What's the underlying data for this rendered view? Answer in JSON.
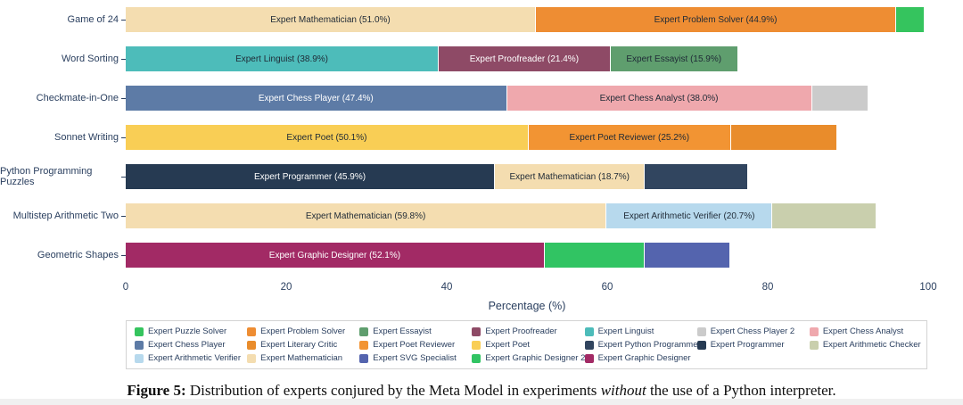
{
  "chart_data": {
    "type": "bar",
    "orientation": "horizontal",
    "stacked": true,
    "title": "",
    "xlabel": "Percentage (%)",
    "ylabel": "",
    "xlim": [
      0,
      100
    ],
    "xticks": [
      0,
      20,
      40,
      60,
      80,
      100
    ],
    "grid": false,
    "legend_position": "bottom",
    "categories": [
      "Game of 24",
      "Word Sorting",
      "Checkmate-in-One",
      "Sonnet Writing",
      "Python Programming Puzzles",
      "Multistep Arithmetic Two",
      "Geometric Shapes"
    ],
    "rows": [
      {
        "category": "Game of 24",
        "segments": [
          {
            "expert": "Expert Mathematician",
            "value": 51.0,
            "label": "Expert Mathematician (51.0%)",
            "text": "dark"
          },
          {
            "expert": "Expert Problem Solver",
            "value": 44.9,
            "label": "Expert Problem Solver (44.9%)",
            "text": "dark"
          },
          {
            "expert": "Expert Puzzle Solver",
            "value": 3.5,
            "label": "",
            "text": "dark"
          }
        ]
      },
      {
        "category": "Word Sorting",
        "segments": [
          {
            "expert": "Expert Linguist",
            "value": 38.9,
            "label": "Expert Linguist (38.9%)",
            "text": "dark"
          },
          {
            "expert": "Expert Proofreader",
            "value": 21.4,
            "label": "Expert Proofreader (21.4%)",
            "text": "light"
          },
          {
            "expert": "Expert Essayist",
            "value": 15.9,
            "label": "Expert Essayist (15.9%)",
            "text": "dark"
          }
        ]
      },
      {
        "category": "Checkmate-in-One",
        "segments": [
          {
            "expert": "Expert Chess Player",
            "value": 47.4,
            "label": "Expert Chess Player (47.4%)",
            "text": "light"
          },
          {
            "expert": "Expert Chess Analyst",
            "value": 38.0,
            "label": "Expert Chess Analyst (38.0%)",
            "text": "dark"
          },
          {
            "expert": "Expert Chess Player 2",
            "value": 7.0,
            "label": "",
            "text": "dark"
          }
        ]
      },
      {
        "category": "Sonnet Writing",
        "segments": [
          {
            "expert": "Expert Poet",
            "value": 50.1,
            "label": "Expert Poet (50.1%)",
            "text": "dark"
          },
          {
            "expert": "Expert Poet Reviewer",
            "value": 25.2,
            "label": "Expert Poet Reviewer (25.2%)",
            "text": "dark"
          },
          {
            "expert": "Expert Literary Critic",
            "value": 13.3,
            "label": "",
            "text": "dark"
          }
        ]
      },
      {
        "category": "Python Programming Puzzles",
        "segments": [
          {
            "expert": "Expert Programmer",
            "value": 45.9,
            "label": "Expert Programmer (45.9%)",
            "text": "light"
          },
          {
            "expert": "Expert Mathematician",
            "value": 18.7,
            "label": "Expert Mathematician (18.7%)",
            "text": "dark"
          },
          {
            "expert": "Expert Python Programmer",
            "value": 12.9,
            "label": "",
            "text": "light"
          }
        ]
      },
      {
        "category": "Multistep Arithmetic Two",
        "segments": [
          {
            "expert": "Expert Mathematician",
            "value": 59.8,
            "label": "Expert Mathematician (59.8%)",
            "text": "dark"
          },
          {
            "expert": "Expert Arithmetic Verifier",
            "value": 20.7,
            "label": "Expert Arithmetic Verifier (20.7%)",
            "text": "dark"
          },
          {
            "expert": "Expert Arithmetic Checker",
            "value": 13.0,
            "label": "",
            "text": "dark"
          }
        ]
      },
      {
        "category": "Geometric Shapes",
        "segments": [
          {
            "expert": "Expert Graphic Designer",
            "value": 52.1,
            "label": "Expert Graphic Designer (52.1%)",
            "text": "light"
          },
          {
            "expert": "Expert Graphic Designer 2",
            "value": 12.5,
            "label": "",
            "text": "dark"
          },
          {
            "expert": "Expert SVG Specialist",
            "value": 10.6,
            "label": "",
            "text": "light"
          }
        ]
      }
    ],
    "legend": [
      {
        "label": "Expert Puzzle Solver",
        "color": "#35c45e"
      },
      {
        "label": "Expert Problem Solver",
        "color": "#ee8d33"
      },
      {
        "label": "Expert Essayist",
        "color": "#5f9e6e"
      },
      {
        "label": "Expert Proofreader",
        "color": "#8e4a66"
      },
      {
        "label": "Expert Linguist",
        "color": "#4dbcba"
      },
      {
        "label": "Expert Chess Player 2",
        "color": "#cbcbcb"
      },
      {
        "label": "Expert Chess Analyst",
        "color": "#efa8ad"
      },
      {
        "label": "Expert Chess Player",
        "color": "#5d7ba6"
      },
      {
        "label": "Expert Literary Critic",
        "color": "#e98c2b"
      },
      {
        "label": "Expert Poet Reviewer",
        "color": "#f29433"
      },
      {
        "label": "Expert Poet",
        "color": "#f9ce55"
      },
      {
        "label": "Expert Python Programmer",
        "color": "#31455f"
      },
      {
        "label": "Expert Programmer",
        "color": "#263a52"
      },
      {
        "label": "Expert Arithmetic Checker",
        "color": "#c9cfad"
      },
      {
        "label": "Expert Arithmetic Verifier",
        "color": "#b7d9ed"
      },
      {
        "label": "Expert Mathematician",
        "color": "#f4ddb0"
      },
      {
        "label": "Expert SVG Specialist",
        "color": "#5464ae"
      },
      {
        "label": "Expert Graphic Designer 2",
        "color": "#31c463"
      },
      {
        "label": "Expert Graphic Designer",
        "color": "#a22a65"
      }
    ]
  },
  "caption": {
    "label": "Figure 5:",
    "before_italic": " Distribution of experts conjured by the Meta Model in experiments ",
    "italic": "without",
    "after_italic": " the use of a Python interpreter."
  },
  "colors": {
    "axis_text": "#2a3f5f",
    "segment_text_dark": "#1f2a36",
    "segment_text_light": "#ffffff",
    "legend_border": "#d3d3d3"
  }
}
